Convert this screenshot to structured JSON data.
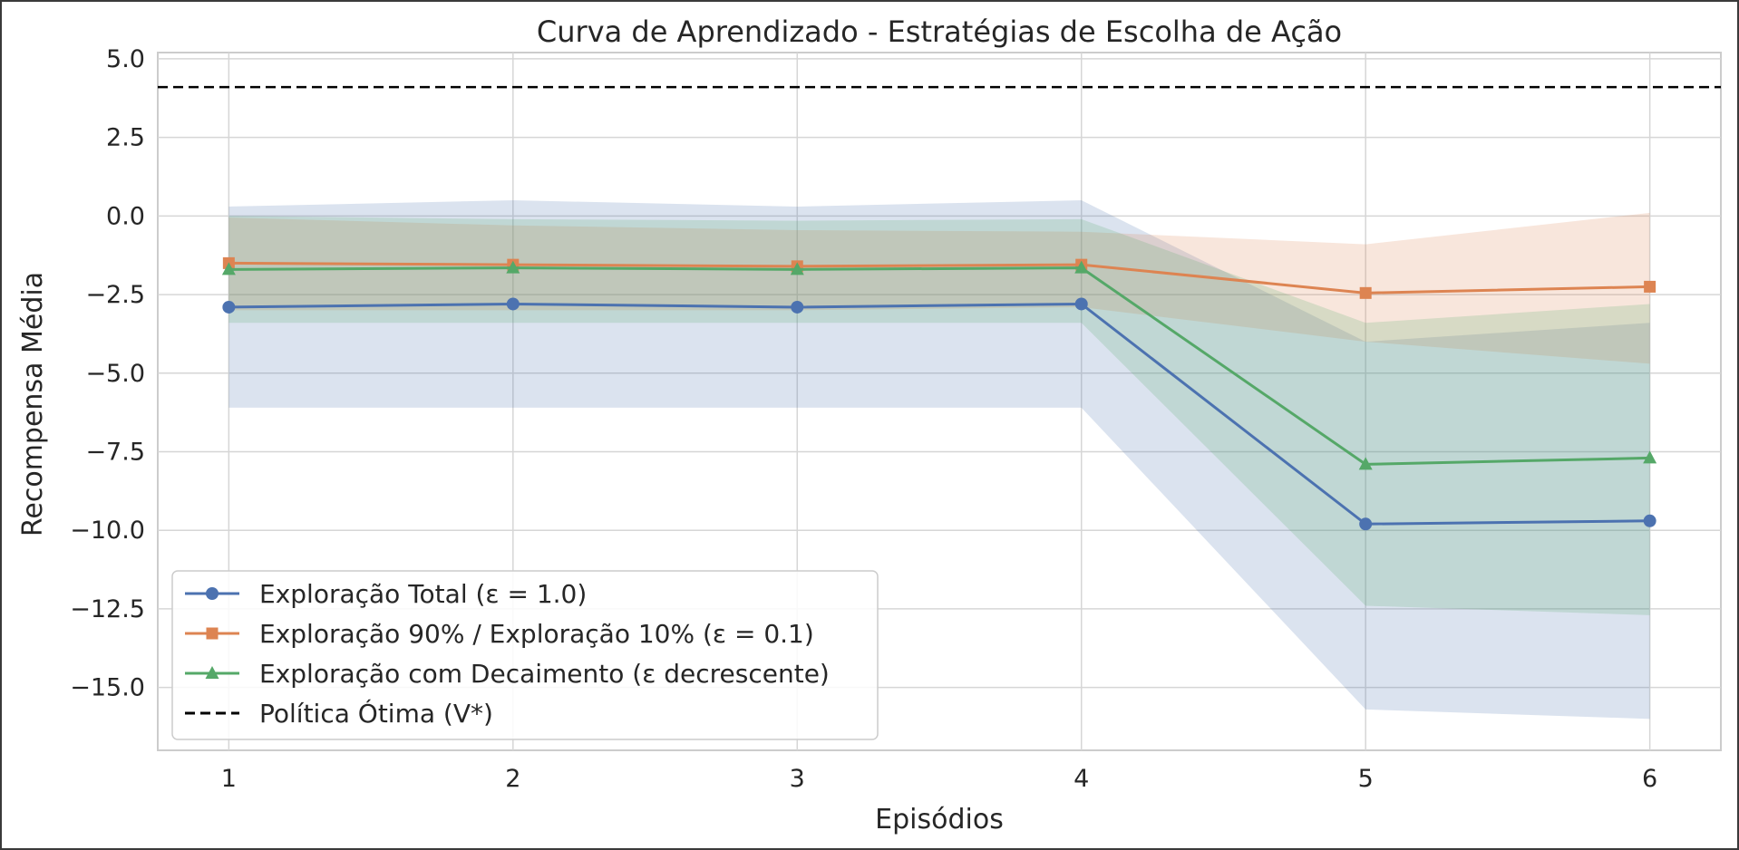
{
  "chart_data": {
    "type": "line",
    "title": "Curva de Aprendizado - Estratégias de Escolha de Ação",
    "xlabel": "Episódios",
    "ylabel": "Recompensa Média",
    "x": [
      1,
      2,
      3,
      4,
      5,
      6
    ],
    "xlim": [
      0.75,
      6.25
    ],
    "ylim": [
      -17.0,
      5.2
    ],
    "xticks": [
      1,
      2,
      3,
      4,
      5,
      6
    ],
    "yticks": [
      5.0,
      2.5,
      0.0,
      -2.5,
      -5.0,
      -7.5,
      -10.0,
      -12.5,
      -15.0
    ],
    "ytick_labels": [
      "5.0",
      "2.5",
      "0.0",
      "−2.5",
      "−5.0",
      "−7.5",
      "−10.0",
      "−12.5",
      "−15.0"
    ],
    "grid": true,
    "legend_position": "lower-left",
    "series": [
      {
        "name": "Exploração Total (ε = 1.0)",
        "color": "#4c72b0",
        "marker": "circle",
        "values": [
          -2.9,
          -2.8,
          -2.9,
          -2.8,
          -9.8,
          -9.7
        ],
        "band_upper": [
          0.3,
          0.5,
          0.3,
          0.5,
          -4.0,
          -3.4
        ],
        "band_lower": [
          -6.1,
          -6.1,
          -6.1,
          -6.1,
          -15.7,
          -16.0
        ]
      },
      {
        "name": "Exploração 90% / Exploração 10% (ε = 0.1)",
        "color": "#dd8452",
        "marker": "square",
        "values": [
          -1.5,
          -1.55,
          -1.6,
          -1.55,
          -2.45,
          -2.25
        ],
        "band_upper": [
          -0.05,
          -0.3,
          -0.45,
          -0.5,
          -0.9,
          0.1
        ],
        "band_lower": [
          -3.0,
          -3.0,
          -3.0,
          -2.9,
          -4.0,
          -4.7
        ]
      },
      {
        "name": "Exploração com Decaimento (ε decrescente)",
        "color": "#55a868",
        "marker": "triangle",
        "values": [
          -1.7,
          -1.65,
          -1.7,
          -1.65,
          -7.9,
          -7.7
        ],
        "band_upper": [
          0.0,
          -0.1,
          -0.15,
          -0.1,
          -3.4,
          -2.8
        ],
        "band_lower": [
          -3.4,
          -3.4,
          -3.4,
          -3.4,
          -12.4,
          -12.7
        ]
      }
    ],
    "reference_line": {
      "name": "Política Ótima (V*)",
      "value": 4.1,
      "color": "#000000",
      "style": "dashed"
    }
  }
}
